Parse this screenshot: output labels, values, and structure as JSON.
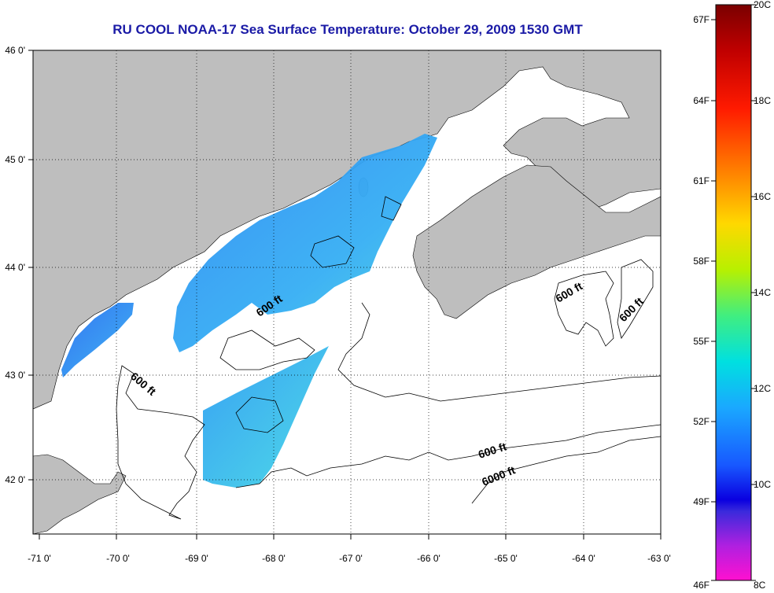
{
  "title": "RU COOL  NOAA-17  Sea Surface Temperature:  October 29, 2009 1530 GMT",
  "lon_ticks": [
    "-71 0'",
    "-70 0'",
    "-69 0'",
    "-68 0'",
    "-67 0'",
    "-66 0'",
    "-65 0'",
    "-64 0'",
    "-63 0'"
  ],
  "lat_ticks": [
    "46 0'",
    "45 0'",
    "44 0'",
    "43 0'",
    "42 0'"
  ],
  "contour_labels": [
    "600 ft",
    "600 ft",
    "600 ft",
    "600 ft",
    "600 ft",
    "6000 ft"
  ],
  "colorbar": {
    "fahrenheit": [
      "67F",
      "64F",
      "61F",
      "58F",
      "55F",
      "52F",
      "49F",
      "46F"
    ],
    "celsius": [
      "20C",
      "18C",
      "16C",
      "14C",
      "12C",
      "10C",
      "8C"
    ]
  },
  "colors": {
    "land": "#bebebe",
    "ocean": "#ffffff",
    "title": "#1a1aa6"
  }
}
